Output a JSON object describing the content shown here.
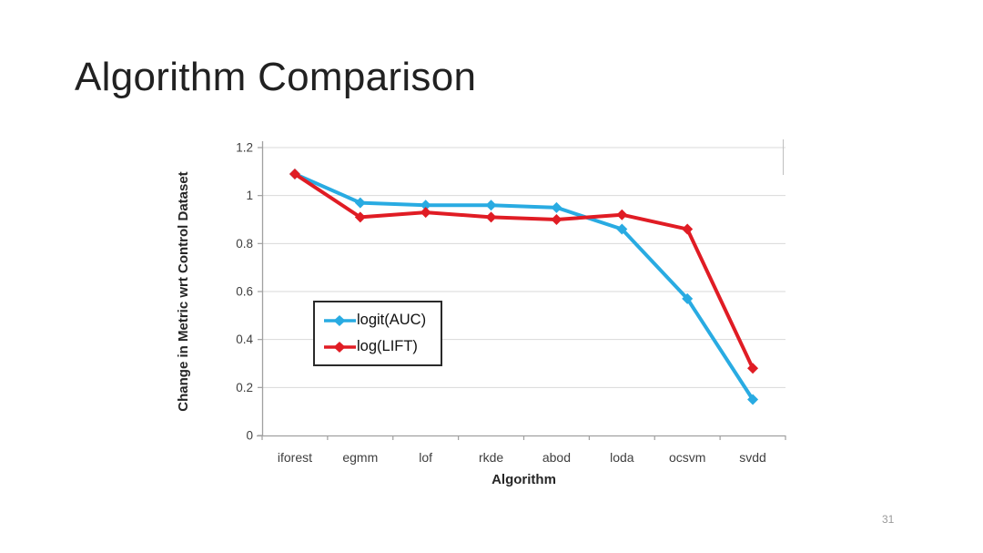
{
  "slide": {
    "title": "Algorithm Comparison",
    "page_number": "31"
  },
  "chart_data": {
    "type": "line",
    "title": "",
    "xlabel": "Algorithm",
    "ylabel": "Change in Metric wrt Control Dataset",
    "categories": [
      "iforest",
      "egmm",
      "lof",
      "rkde",
      "abod",
      "loda",
      "ocsvm",
      "svdd"
    ],
    "series": [
      {
        "name": "logit(AUC)",
        "color": "#29ABE2",
        "marker": "diamond",
        "values": [
          1.09,
          0.97,
          0.96,
          0.96,
          0.95,
          0.86,
          0.57,
          0.15
        ]
      },
      {
        "name": "log(LIFT)",
        "color": "#E01C24",
        "marker": "diamond",
        "values": [
          1.09,
          0.91,
          0.93,
          0.91,
          0.9,
          0.92,
          0.86,
          0.28
        ]
      }
    ],
    "ylim": [
      0,
      1.2
    ],
    "yticks": [
      0,
      0.2,
      0.4,
      0.6,
      0.8,
      1,
      1.2
    ],
    "ytick_labels": [
      "0",
      "0.2",
      "0.4",
      "0.6",
      "0.8",
      "1",
      "1.2"
    ],
    "grid": "horizontal",
    "legend_position": "inside-left",
    "colors": {
      "gridline": "#d9d9d9",
      "axis": "#a0a0a0",
      "tick_text": "#3f3f3f",
      "axis_title_text": "#262626"
    }
  }
}
